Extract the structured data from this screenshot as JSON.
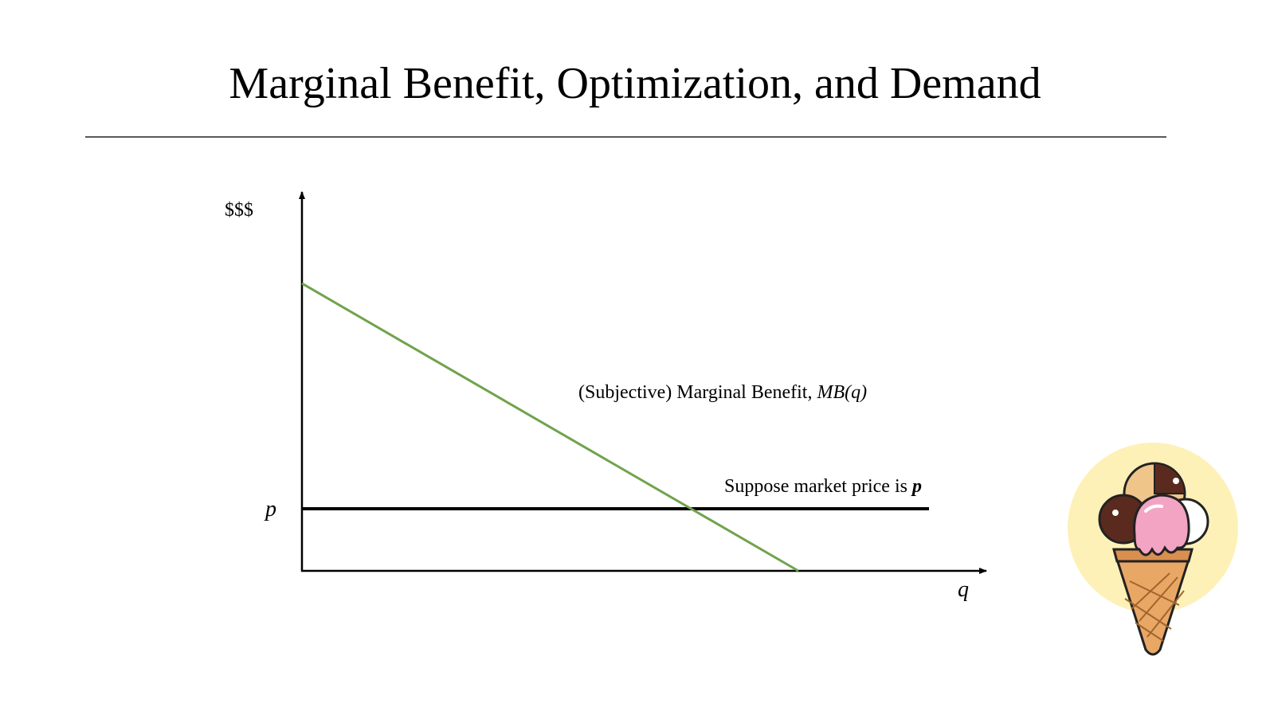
{
  "slide": {
    "title": "Marginal Benefit, Optimization, and Demand"
  },
  "diagram": {
    "y_axis_label": "$$$",
    "x_axis_label": "q",
    "price_tick_label": "p",
    "mb_label_text": "(Subjective) Marginal Benefit, ",
    "mb_label_math": "MB(q)",
    "price_label_text": "Suppose market price is ",
    "price_label_math": "p",
    "colors": {
      "mb_curve": "#70a34b",
      "price_line": "#000000",
      "axes": "#000000"
    }
  },
  "decoration": {
    "icon": "ice-cream-cone-icon",
    "background_circle": "#fdf1b8",
    "scoop_colors": [
      "#5a2a1e",
      "#f0c58a",
      "#f3a4c3",
      "#ffffff"
    ],
    "cone_color": "#e9a765"
  }
}
